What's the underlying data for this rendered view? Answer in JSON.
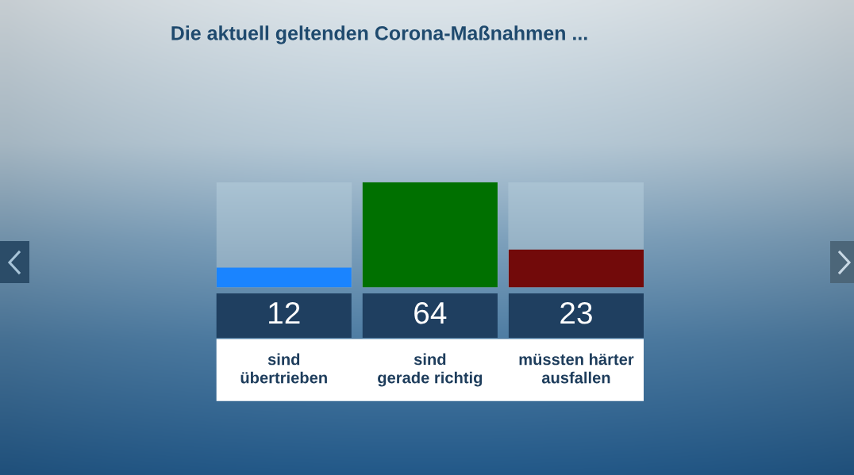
{
  "chart_data": {
    "type": "bar",
    "title": "Die aktuell geltenden Corona-Maßnahmen ...",
    "categories": [
      "sind\nübertrieben",
      "sind\ngerade richtig",
      "müssten härter\nausfallen"
    ],
    "values": [
      12,
      64,
      23
    ],
    "colors": [
      "#1a84ff",
      "#007000",
      "#720a0a"
    ],
    "ylim": [
      0,
      64
    ],
    "data_labels": true,
    "tick_labels": "x"
  }
}
